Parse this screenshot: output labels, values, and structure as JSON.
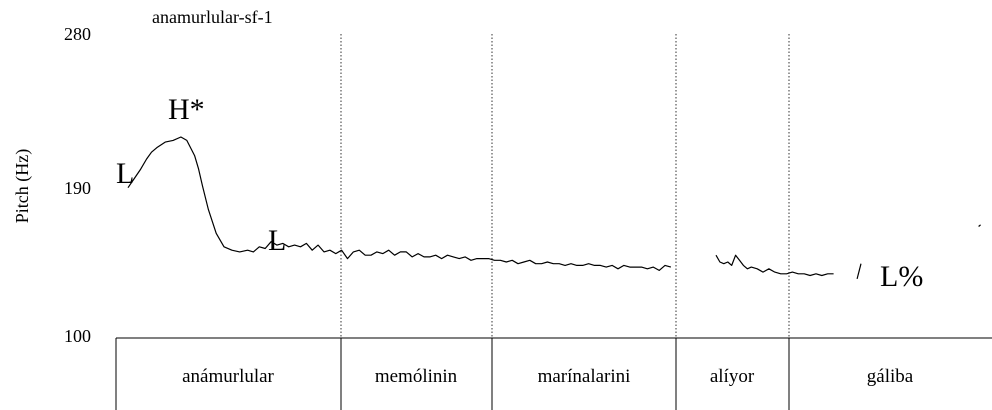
{
  "chart_data": {
    "type": "line",
    "title": "anamurlular-sf-1",
    "ylabel": "Pitch (Hz)",
    "ylim": [
      100,
      280
    ],
    "yticks": [
      "280",
      "190",
      "100"
    ],
    "words": [
      "anámurlular",
      "memólinin",
      "marínalarini",
      "alíyor",
      "gáliba"
    ],
    "tones": [
      "L",
      "H*",
      "L",
      "L%"
    ],
    "series": [
      {
        "segment": 1,
        "x": [
          0.0,
          0.035,
          0.065,
          0.095,
          0.12,
          0.15,
          0.19,
          0.23,
          0.27,
          0.3,
          0.34,
          0.36,
          0.38,
          0.41,
          0.45,
          0.49,
          0.53,
          0.57,
          0.61,
          0.64,
          0.67,
          0.7,
          0.73,
          0.76,
          0.79,
          0.82,
          0.85,
          0.88,
          0.91,
          0.94,
          0.97,
          1.0,
          1.03,
          1.06,
          1.09,
          1.12,
          1.15,
          1.18,
          1.21,
          1.24,
          1.27,
          1.3,
          1.33,
          1.36,
          1.39,
          1.42,
          1.45,
          1.48,
          1.51,
          1.54,
          1.57,
          1.6,
          1.63,
          1.66,
          1.69,
          1.72,
          1.75,
          1.78,
          1.81,
          1.84,
          1.87,
          1.9,
          1.93,
          1.96,
          1.99,
          2.02,
          2.05,
          2.08,
          2.11,
          2.14,
          2.17,
          2.2,
          2.23,
          2.26,
          2.29,
          2.32,
          2.35,
          2.38,
          2.41,
          2.44,
          2.47,
          2.5,
          2.53,
          2.56,
          2.59,
          2.62,
          2.65,
          2.68,
          2.71,
          2.74,
          2.77
        ],
        "y": [
          189,
          195,
          200,
          206,
          210,
          213,
          216,
          217,
          219,
          217,
          208,
          200,
          190,
          176,
          162,
          154,
          152,
          151,
          152,
          151,
          154,
          153,
          157,
          155,
          156,
          154,
          155,
          154,
          156,
          152,
          155,
          151,
          152,
          150,
          152,
          147,
          151,
          152,
          149,
          149,
          151,
          150,
          152,
          149,
          151,
          151,
          148,
          150,
          148,
          148,
          149,
          147,
          149,
          148,
          147,
          148,
          146,
          147,
          147,
          147,
          146,
          146,
          145,
          146,
          144,
          145,
          146,
          144,
          144,
          145,
          144,
          144,
          143,
          144,
          143,
          143,
          144,
          143,
          143,
          142,
          143,
          141,
          143,
          142,
          142,
          142,
          141,
          142,
          140,
          143,
          142
        ]
      },
      {
        "segment": 2,
        "x": [
          3.0,
          3.02,
          3.04,
          3.06,
          3.08,
          3.1,
          3.12,
          3.14,
          3.16,
          3.18,
          3.21,
          3.24,
          3.27,
          3.3,
          3.33,
          3.36,
          3.39,
          3.42,
          3.45,
          3.48,
          3.51,
          3.54,
          3.57,
          3.6
        ],
        "y": [
          149,
          145,
          144,
          145,
          143,
          149,
          146,
          143,
          141,
          142,
          141,
          139,
          141,
          139,
          138,
          138,
          139,
          138,
          138,
          137,
          138,
          137,
          138,
          138
        ]
      },
      {
        "segment": 3,
        "x": [
          3.72,
          3.74
        ],
        "y": [
          135,
          144
        ]
      },
      {
        "segment": 4,
        "x": [
          4.34,
          4.35
        ],
        "y": [
          166,
          167
        ]
      }
    ]
  }
}
